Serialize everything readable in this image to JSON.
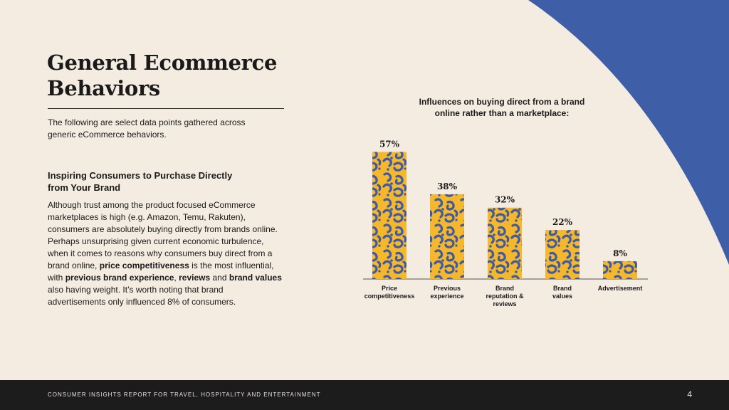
{
  "colors": {
    "background": "#f4ebe1",
    "accent_blue": "#3f5ea8",
    "bar_yellow": "#f5b72b",
    "spot_blue": "#3c5aa6",
    "footer_bg": "#1c1c1c"
  },
  "page": {
    "title_line1": "General Ecommerce",
    "title_line2": "Behaviors",
    "intro": "The following are select data points gathered across generic eCommerce behaviors.",
    "subheading_line1": "Inspiring Consumers to Purchase Directly",
    "subheading_line2": "from Your Brand",
    "body": {
      "part1": "Although trust among the product focused eCommerce marketplaces is high (e.g. Amazon, Temu, Rakuten), consumers are absolutely buying directly from brands online. Perhaps unsurprising given current economic turbulence, when it comes to reasons why consumers buy direct from a brand online, ",
      "bold1": "price competitiveness",
      "part2": " is the most influential, with ",
      "bold2": "previous brand experience",
      "part3": ", ",
      "bold3": "reviews",
      "part4": " and ",
      "bold4": "brand values",
      "part5": " also having weight. It’s worth noting that brand advertisements only influenced 8% of consumers."
    }
  },
  "chart_data": {
    "type": "bar",
    "title_line1": "Influences on buying direct from a brand",
    "title_line2": "online rather than a marketplace:",
    "categories": [
      [
        "Price",
        "competitiveness"
      ],
      [
        "Previous",
        "experience"
      ],
      [
        "Brand",
        "reputation &",
        "reviews"
      ],
      [
        "Brand",
        "values"
      ],
      [
        "Advertisement"
      ]
    ],
    "values": [
      57,
      38,
      32,
      22,
      8
    ],
    "data_labels": [
      "57%",
      "38%",
      "32%",
      "22%",
      "8%"
    ],
    "ylim": [
      0,
      60
    ],
    "grid": false,
    "legend": "none"
  },
  "footer": {
    "text": "CONSUMER INSIGHTS REPORT FOR TRAVEL, HOSPITALITY AND ENTERTAINMENT",
    "page_number": "4"
  }
}
